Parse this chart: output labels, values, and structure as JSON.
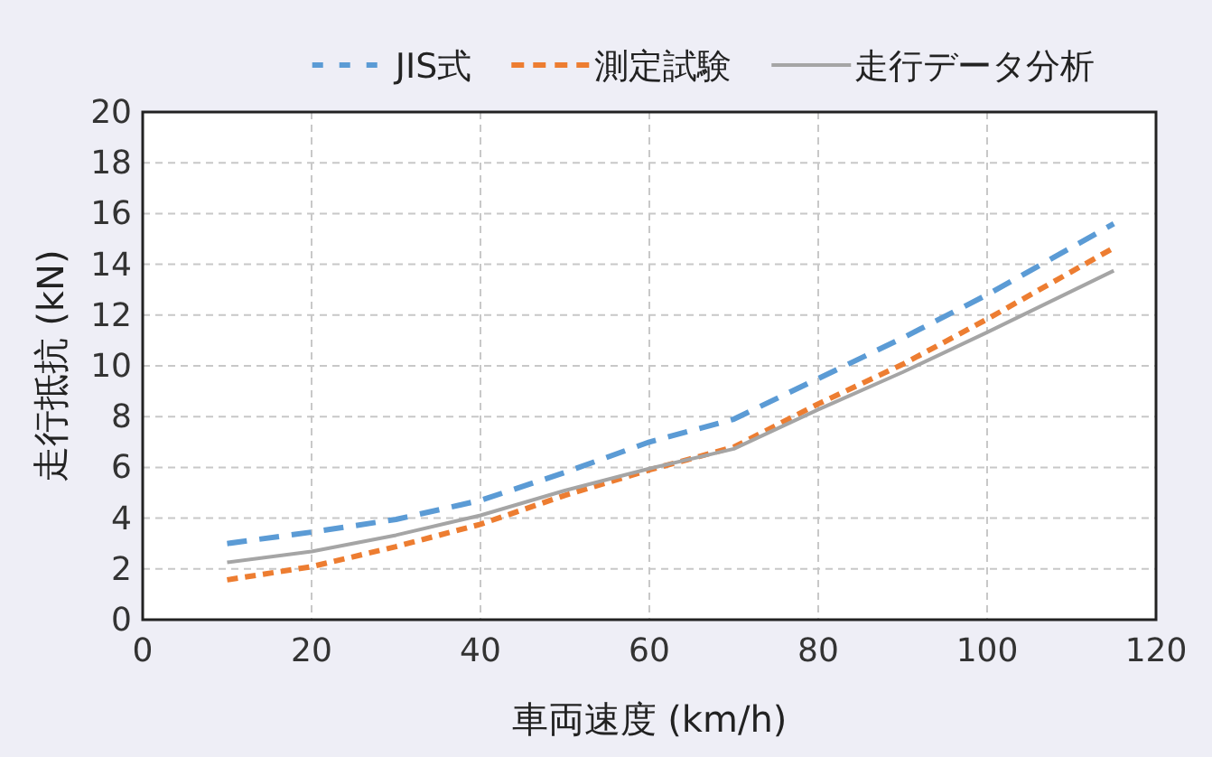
{
  "chart_data": {
    "type": "line",
    "xlabel": "車両速度 (km/h)",
    "ylabel": "走行抵抗 (kN)",
    "x": [
      10,
      20,
      30,
      40,
      50,
      60,
      70,
      80,
      90,
      100,
      115
    ],
    "series": [
      {
        "name": "JIS式",
        "color": "#5b9bd5",
        "line_style": "dashed",
        "values": [
          3.0,
          3.45,
          3.95,
          4.7,
          5.8,
          7.0,
          7.9,
          9.5,
          11.1,
          12.8,
          15.6
        ]
      },
      {
        "name": "測定試験",
        "color": "#ed7d31",
        "line_style": "dotted",
        "values": [
          1.57,
          2.09,
          2.88,
          3.76,
          4.9,
          5.9,
          6.8,
          8.5,
          10.06,
          11.84,
          14.65
        ]
      },
      {
        "name": "走行データ分析",
        "color": "#a5a5a5",
        "line_style": "solid",
        "values": [
          2.26,
          2.69,
          3.33,
          4.11,
          5.09,
          5.95,
          6.73,
          8.28,
          9.75,
          11.32,
          13.75
        ]
      }
    ],
    "xlim": [
      0,
      120
    ],
    "ylim": [
      0,
      20
    ],
    "xticks": [
      0,
      20,
      40,
      60,
      80,
      100,
      120
    ],
    "yticks": [
      0,
      2,
      4,
      6,
      8,
      10,
      12,
      14,
      16,
      18,
      20
    ],
    "grid": true,
    "legend": "top"
  }
}
